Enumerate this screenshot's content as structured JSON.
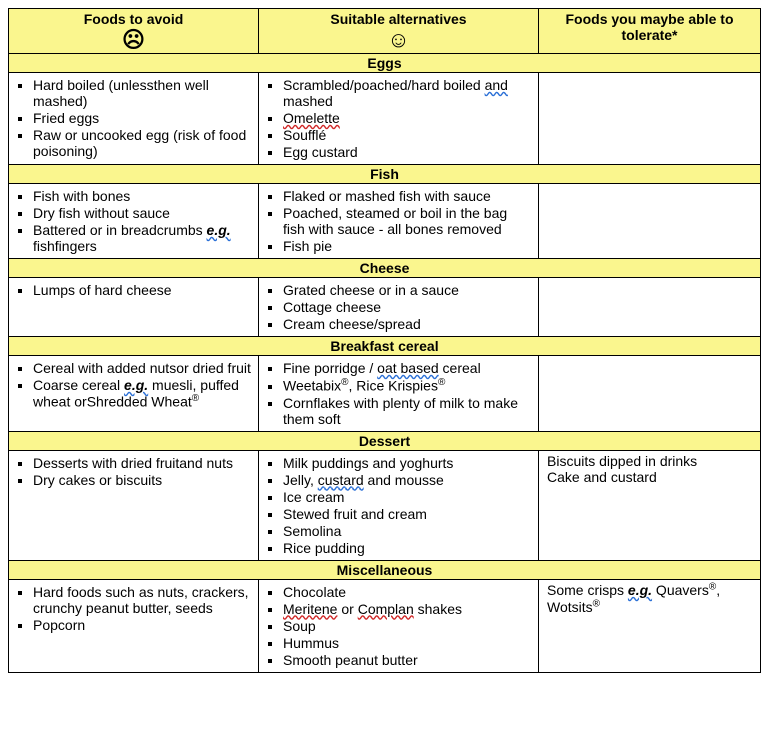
{
  "headers": {
    "avoid": "Foods to avoid",
    "alt": "Suitable alternatives",
    "tolerate": "Foods you maybe able to tolerate*",
    "sad_face": "☹",
    "happy_face": "☺"
  },
  "sections": {
    "eggs": {
      "title": "Eggs",
      "avoid": {
        "i0": "Hard boiled (unlessthen well mashed)",
        "i1": "Fried eggs",
        "i2": "Raw or uncooked egg (risk of food poisoning)"
      },
      "alt": {
        "i0a": "Scrambled/poached/hard boiled ",
        "i0b": "and",
        "i0c": " mashed",
        "i1": "Omelette",
        "i2": "Soufflé",
        "i3": "Egg custard"
      }
    },
    "fish": {
      "title": "Fish",
      "avoid": {
        "i0": "Fish with bones",
        "i1": "Dry fish without sauce",
        "i2a": "Battered or in breadcrumbs ",
        "i2b": "e.g.",
        "i2c": " fishfingers"
      },
      "alt": {
        "i0": "Flaked or mashed fish with sauce",
        "i1": "Poached, steamed or boil in the bag fish with sauce - all bones removed",
        "i2": "Fish pie"
      }
    },
    "cheese": {
      "title": "Cheese",
      "avoid": {
        "i0": "Lumps of hard cheese"
      },
      "alt": {
        "i0": "Grated cheese or in a sauce",
        "i1": "Cottage cheese",
        "i2": "Cream cheese/spread"
      }
    },
    "cereal": {
      "title": "Breakfast cereal",
      "avoid": {
        "i0": "Cereal with added nutsor dried fruit",
        "i1a": "Coarse cereal ",
        "i1b": "e.g.",
        "i1c": " muesli, puffed wheat orShredded Wheat"
      },
      "alt": {
        "i0a": "Fine porridge / ",
        "i0b": "oat based",
        "i0c": " cereal",
        "i1a": "Weetabix",
        "i1b": ", Rice Krispies",
        "i2": "Cornflakes with plenty of milk to make them soft"
      }
    },
    "dessert": {
      "title": "Dessert",
      "avoid": {
        "i0": "Desserts with dried fruitand nuts",
        "i1": "Dry cakes or biscuits"
      },
      "alt": {
        "i0": "Milk puddings and yoghurts",
        "i1a": "Jelly, ",
        "i1b": "custard",
        "i1c": " and mousse",
        "i2": "Ice cream",
        "i3": "Stewed fruit and cream",
        "i4": "Semolina",
        "i5": "Rice pudding"
      },
      "tolerate": {
        "l0": "Biscuits dipped in drinks",
        "l1": "Cake and custard"
      }
    },
    "misc": {
      "title": "Miscellaneous",
      "avoid": {
        "i0": "Hard foods such as nuts, crackers, crunchy peanut butter, seeds",
        "i1": "Popcorn"
      },
      "alt": {
        "i0": "Chocolate",
        "i1a": "Meritene",
        "i1b": " or ",
        "i1c": "Complan",
        "i1d": " shakes",
        "i2": "Soup",
        "i3": "Hummus",
        "i4": "Smooth peanut butter"
      },
      "tolerate": {
        "l0a": "Some crisps ",
        "l0b": "e.g.",
        "l0c": " Quavers",
        "l0d": ", Wotsits"
      }
    }
  }
}
